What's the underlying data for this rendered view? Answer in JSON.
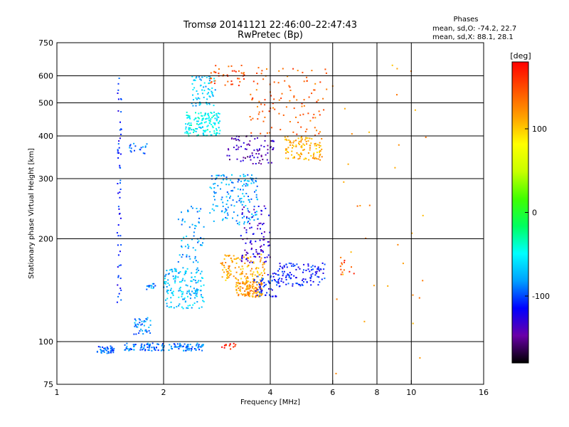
{
  "chart_data": {
    "type": "scatter",
    "title": "Tromsø 20141121 22:46:00–22:47:43",
    "subtitle": "RwPretec (Bp)",
    "xlabel": "Frequency [MHz]",
    "ylabel": "Stationary phase Virtual Height [km]",
    "x_scale": "log",
    "y_scale": "log",
    "xlim": [
      1,
      16
    ],
    "ylim": [
      75,
      750
    ],
    "x_ticks": [
      1,
      2,
      4,
      6,
      8,
      10,
      16
    ],
    "x_tick_labels": [
      "1",
      "2",
      "4",
      "6",
      "8",
      "10",
      "16"
    ],
    "x_gridlines": [
      2,
      4,
      6,
      8,
      10
    ],
    "y_ticks": [
      75,
      100,
      200,
      300,
      400,
      500,
      600,
      750
    ],
    "y_tick_labels": [
      "75",
      "100",
      "200",
      "300",
      "400",
      "500",
      "600",
      "750"
    ],
    "y_gridlines": [
      100,
      200,
      300,
      400,
      500,
      600
    ],
    "grid": true,
    "legend": {
      "heading": "Phases",
      "lines": [
        "mean, sd,O: -74.2, 22.7",
        "mean, sd,X:  88.1, 28.1"
      ],
      "placement": "top-right"
    },
    "colorbar": {
      "label": "[deg]",
      "range": [
        -180,
        180
      ],
      "ticks": [
        100,
        0,
        -100
      ],
      "tick_labels": [
        "100",
        "0",
        "-100"
      ],
      "colors": [
        "#000000",
        "#6a00a8",
        "#0000ff",
        "#00a0ff",
        "#00ffff",
        "#00ff60",
        "#40ff00",
        "#c8ff00",
        "#ffff00",
        "#ffa000",
        "#ff5000",
        "#ff0000"
      ]
    },
    "clusters": [
      {
        "x": [
          1.3,
          1.45
        ],
        "y": [
          92,
          97
        ],
        "phase": -95,
        "n": 45
      },
      {
        "x": [
          1.55,
          2.6
        ],
        "y": [
          94,
          99
        ],
        "phase": -90,
        "n": 140
      },
      {
        "x": [
          1.48,
          1.52
        ],
        "y": [
          130,
          600
        ],
        "phase": -110,
        "n": 60
      },
      {
        "x": [
          1.65,
          1.85
        ],
        "y": [
          105,
          118
        ],
        "phase": -85,
        "n": 40
      },
      {
        "x": [
          1.6,
          1.8
        ],
        "y": [
          355,
          380
        ],
        "phase": -90,
        "n": 18
      },
      {
        "x": [
          1.78,
          1.9
        ],
        "y": [
          142,
          148
        ],
        "phase": -85,
        "n": 14
      },
      {
        "x": [
          2.0,
          2.6
        ],
        "y": [
          125,
          165
        ],
        "phase": -70,
        "n": 160
      },
      {
        "x": [
          2.2,
          2.6
        ],
        "y": [
          170,
          250
        ],
        "phase": -80,
        "n": 60
      },
      {
        "x": [
          2.3,
          2.9
        ],
        "y": [
          400,
          470
        ],
        "phase": -50,
        "n": 140
      },
      {
        "x": [
          2.4,
          2.8
        ],
        "y": [
          490,
          600
        ],
        "phase": -70,
        "n": 70
      },
      {
        "x": [
          2.7,
          3.7
        ],
        "y": [
          220,
          310
        ],
        "phase": -80,
        "n": 160
      },
      {
        "x": [
          3.2,
          3.8
        ],
        "y": [
          135,
          150
        ],
        "phase": 120,
        "n": 120
      },
      {
        "x": [
          2.9,
          3.9
        ],
        "y": [
          150,
          180
        ],
        "phase": 110,
        "n": 120
      },
      {
        "x": [
          3.0,
          4.1
        ],
        "y": [
          330,
          400
        ],
        "phase": -140,
        "n": 80
      },
      {
        "x": [
          3.3,
          4.0
        ],
        "y": [
          170,
          250
        ],
        "phase": -130,
        "n": 90
      },
      {
        "x": [
          3.6,
          4.2
        ],
        "y": [
          135,
          160
        ],
        "phase": -110,
        "n": 60
      },
      {
        "x": [
          4.2,
          5.7
        ],
        "y": [
          145,
          170
        ],
        "phase": -110,
        "n": 110
      },
      {
        "x": [
          4.4,
          5.6
        ],
        "y": [
          340,
          400
        ],
        "phase": 110,
        "n": 110
      },
      {
        "x": [
          3.5,
          5.8
        ],
        "y": [
          400,
          640
        ],
        "phase": 140,
        "n": 110
      },
      {
        "x": [
          2.7,
          3.4
        ],
        "y": [
          560,
          650
        ],
        "phase": 150,
        "n": 40
      },
      {
        "x": [
          2.9,
          3.2
        ],
        "y": [
          94,
          99
        ],
        "phase": 170,
        "n": 14
      },
      {
        "x": [
          6.3,
          6.9
        ],
        "y": [
          155,
          185
        ],
        "phase": 150,
        "n": 12
      },
      {
        "x": [
          6.0,
          11.0
        ],
        "y": [
          80,
          650
        ],
        "phase": 120,
        "n": 35
      }
    ]
  }
}
